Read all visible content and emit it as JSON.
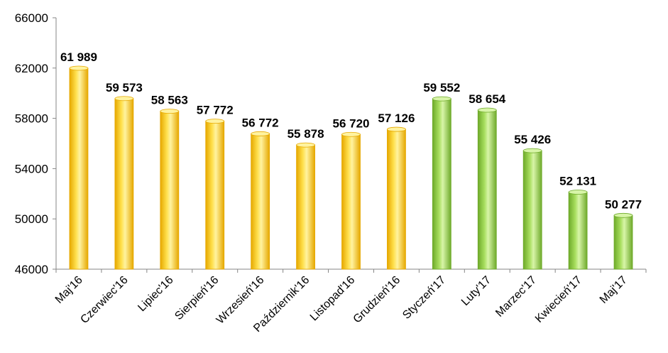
{
  "chart_data": {
    "type": "bar",
    "categories": [
      "Maj'16",
      "Czerwiec'16",
      "Lipiec'16",
      "Sierpień'16",
      "Wrzesień'16",
      "Październik'16",
      "Listopad'16",
      "Grudzień'16",
      "Styczeń'17",
      "Luty'17",
      "Marzec'17",
      "Kwiecień'17",
      "Maj'17"
    ],
    "values": [
      61989,
      59573,
      58563,
      57772,
      56772,
      55878,
      56720,
      57126,
      59552,
      58654,
      55426,
      52131,
      50277
    ],
    "data_labels": [
      "61 989",
      "59 573",
      "58 563",
      "57 772",
      "56 772",
      "55 878",
      "56 720",
      "57 126",
      "59 552",
      "58 654",
      "55 426",
      "52 131",
      "50 277"
    ],
    "bar_colors": [
      "yellow",
      "yellow",
      "yellow",
      "yellow",
      "yellow",
      "yellow",
      "yellow",
      "yellow",
      "green",
      "green",
      "green",
      "green",
      "green"
    ],
    "palette": {
      "yellow_light": "#FFF3A0",
      "yellow_mid": "#FFD21A",
      "yellow_dark": "#E6A800",
      "green_light": "#D8F5A8",
      "green_mid": "#9BD94A",
      "green_dark": "#6EAA2A"
    },
    "ylim": [
      46000,
      66000
    ],
    "yticks": [
      46000,
      50000,
      54000,
      58000,
      62000,
      66000
    ],
    "ytick_labels": [
      "46000",
      "50000",
      "54000",
      "58000",
      "62000",
      "66000"
    ],
    "grid": false,
    "legend": "none",
    "title": "",
    "xlabel": "",
    "ylabel": ""
  }
}
